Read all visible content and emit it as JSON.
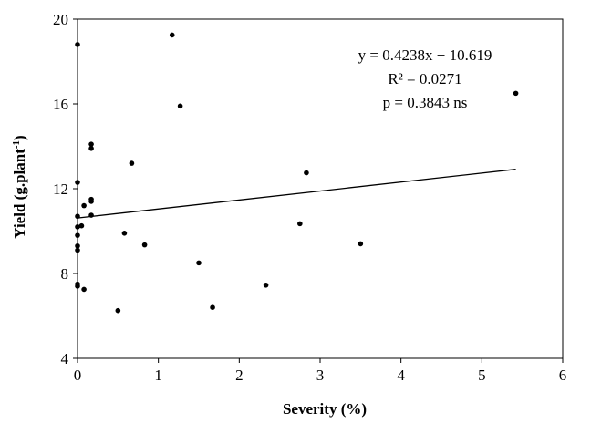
{
  "chart_data": {
    "type": "scatter",
    "xlabel": "Severity (%)",
    "ylabel": {
      "main": "Yield (g.plant",
      "superscript": "-1",
      "close": ")"
    },
    "xlim": [
      0,
      6
    ],
    "ylim": [
      4,
      20
    ],
    "xticks": [
      "0",
      "1",
      "2",
      "3",
      "4",
      "5",
      "6"
    ],
    "yticks": [
      "4",
      "8",
      "12",
      "16",
      "20"
    ],
    "grid": false,
    "legend": "none",
    "annotations": [
      "y = 0.4238x + 10.619",
      "R² = 0.0271",
      "p = 0.3843 ns"
    ],
    "trendline": {
      "slope": 0.4238,
      "intercept": 10.619,
      "x_range": [
        0,
        5.42
      ]
    },
    "points": [
      {
        "x": 0.0,
        "y": 18.8
      },
      {
        "x": 0.0,
        "y": 12.3
      },
      {
        "x": 0.0,
        "y": 10.7
      },
      {
        "x": 0.0,
        "y": 10.2
      },
      {
        "x": 0.0,
        "y": 9.8
      },
      {
        "x": 0.0,
        "y": 9.3
      },
      {
        "x": 0.0,
        "y": 9.1
      },
      {
        "x": 0.0,
        "y": 7.5
      },
      {
        "x": 0.0,
        "y": 7.4
      },
      {
        "x": 0.05,
        "y": 10.25
      },
      {
        "x": 0.08,
        "y": 11.2
      },
      {
        "x": 0.08,
        "y": 7.25
      },
      {
        "x": 0.17,
        "y": 14.1
      },
      {
        "x": 0.17,
        "y": 13.9
      },
      {
        "x": 0.17,
        "y": 11.5
      },
      {
        "x": 0.17,
        "y": 11.4
      },
      {
        "x": 0.17,
        "y": 10.75
      },
      {
        "x": 0.5,
        "y": 6.25
      },
      {
        "x": 0.58,
        "y": 9.9
      },
      {
        "x": 0.67,
        "y": 13.2
      },
      {
        "x": 0.83,
        "y": 9.35
      },
      {
        "x": 1.17,
        "y": 19.25
      },
      {
        "x": 1.27,
        "y": 15.9
      },
      {
        "x": 1.5,
        "y": 8.5
      },
      {
        "x": 1.67,
        "y": 6.4
      },
      {
        "x": 2.33,
        "y": 7.45
      },
      {
        "x": 2.75,
        "y": 10.35
      },
      {
        "x": 2.83,
        "y": 12.75
      },
      {
        "x": 3.5,
        "y": 9.4
      },
      {
        "x": 5.42,
        "y": 16.5
      }
    ]
  }
}
